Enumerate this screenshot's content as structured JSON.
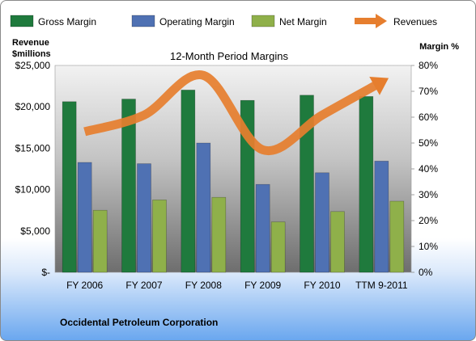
{
  "chart_data": {
    "type": "bar",
    "title": "12-Month Period Margins",
    "categories": [
      "FY 2006",
      "FY 2007",
      "FY 2008",
      "FY 2009",
      "FY 2010",
      "TTM 9-2011"
    ],
    "series": [
      {
        "name": "Gross Margin",
        "axis": "right",
        "color": "#1f7a3d",
        "values": [
          66,
          67,
          70.5,
          66.5,
          68.5,
          68
        ]
      },
      {
        "name": "Operating Margin",
        "axis": "right",
        "color": "#4f71b3",
        "values": [
          42.5,
          42,
          50,
          34,
          38.5,
          43
        ]
      },
      {
        "name": "Net Margin",
        "axis": "right",
        "color": "#8fb04a",
        "values": [
          24,
          28,
          29,
          19.5,
          23.5,
          27.5
        ]
      },
      {
        "name": "Revenues",
        "axis": "left",
        "type": "line",
        "color": "#e67e2e",
        "values": [
          17000,
          19000,
          23800,
          14800,
          19000,
          23000
        ]
      }
    ],
    "ylabel_left": "Revenue\n$millions",
    "ylabel_right": "Margin %",
    "ylim_left": [
      0,
      25000
    ],
    "ylim_right": [
      0,
      80
    ],
    "yticks_left": [
      "$-",
      "$5,000",
      "$10,000",
      "$15,000",
      "$20,000",
      "$25,000"
    ],
    "yticks_right": [
      "0%",
      "10%",
      "20%",
      "30%",
      "40%",
      "50%",
      "60%",
      "70%",
      "80%"
    ],
    "legend_position": "top",
    "grid": false
  },
  "footer": {
    "company": "Occidental Petroleum Corporation"
  }
}
